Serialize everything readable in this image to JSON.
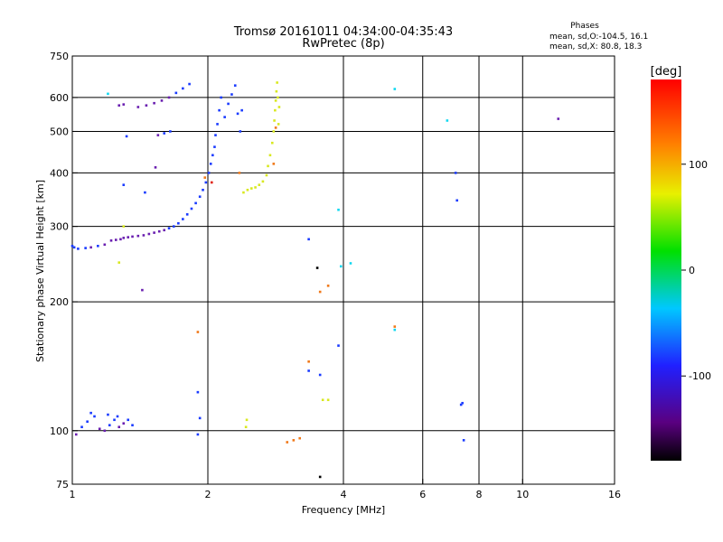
{
  "title": "Tromsø 20161011 04:34:00-04:35:43",
  "subtitle": "RwPretec (8p)",
  "phases_box": {
    "heading": "Phases",
    "line_o": "mean, sd,O:-104.5, 16.1",
    "line_x": "mean, sd,X:  80.8, 18.3"
  },
  "colorbar": {
    "label": "[deg]",
    "ticks": [
      "100",
      "0",
      "-100"
    ],
    "tick_values": [
      100,
      0,
      -100
    ],
    "range": [
      -180,
      180
    ]
  },
  "colors": {
    "purple": "#6a1fb0",
    "blue": "#1a3bff",
    "cyan": "#10d8f0",
    "yellow": "#d8e820",
    "orange": "#f07818",
    "red": "#e02010",
    "black": "#000000"
  },
  "chart_data": {
    "type": "scatter",
    "xlabel": "Frequency [MHz]",
    "ylabel": "Stationary phase Virtual Height [km]",
    "xscale": "log",
    "yscale": "log",
    "xlim": [
      1,
      16
    ],
    "ylim": [
      75,
      750
    ],
    "grid": true,
    "x_ticks": [
      {
        "v": 1,
        "label": "1"
      },
      {
        "v": 2,
        "label": "2"
      },
      {
        "v": 4,
        "label": "4"
      },
      {
        "v": 6,
        "label": "6"
      },
      {
        "v": 8,
        "label": "8"
      },
      {
        "v": 10,
        "label": "10"
      },
      {
        "v": 16,
        "label": "16"
      }
    ],
    "x_gridlines": [
      2,
      4,
      6,
      8,
      10
    ],
    "y_ticks": [
      {
        "v": 75,
        "label": "75"
      },
      {
        "v": 100,
        "label": "100"
      },
      {
        "v": 200,
        "label": "200"
      },
      {
        "v": 300,
        "label": "300"
      },
      {
        "v": 400,
        "label": "400"
      },
      {
        "v": 500,
        "label": "500"
      },
      {
        "v": 600,
        "label": "600"
      },
      {
        "v": 750,
        "label": "750"
      }
    ],
    "y_gridlines": [
      100,
      200,
      300,
      400,
      500,
      600
    ],
    "points": [
      {
        "x": 1.0,
        "y": 270,
        "c": "blue"
      },
      {
        "x": 1.01,
        "y": 268,
        "c": "blue"
      },
      {
        "x": 1.03,
        "y": 266,
        "c": "blue"
      },
      {
        "x": 1.07,
        "y": 267,
        "c": "blue"
      },
      {
        "x": 1.1,
        "y": 268,
        "c": "purple"
      },
      {
        "x": 1.14,
        "y": 270,
        "c": "blue"
      },
      {
        "x": 1.18,
        "y": 272,
        "c": "purple"
      },
      {
        "x": 1.22,
        "y": 278,
        "c": "purple"
      },
      {
        "x": 1.25,
        "y": 279,
        "c": "purple"
      },
      {
        "x": 1.28,
        "y": 280,
        "c": "purple"
      },
      {
        "x": 1.3,
        "y": 282,
        "c": "purple"
      },
      {
        "x": 1.33,
        "y": 283,
        "c": "purple"
      },
      {
        "x": 1.36,
        "y": 284,
        "c": "purple"
      },
      {
        "x": 1.4,
        "y": 285,
        "c": "purple"
      },
      {
        "x": 1.44,
        "y": 286,
        "c": "purple"
      },
      {
        "x": 1.48,
        "y": 288,
        "c": "purple"
      },
      {
        "x": 1.52,
        "y": 290,
        "c": "purple"
      },
      {
        "x": 1.56,
        "y": 292,
        "c": "purple"
      },
      {
        "x": 1.6,
        "y": 294,
        "c": "purple"
      },
      {
        "x": 1.64,
        "y": 297,
        "c": "blue"
      },
      {
        "x": 1.68,
        "y": 300,
        "c": "blue"
      },
      {
        "x": 1.72,
        "y": 305,
        "c": "blue"
      },
      {
        "x": 1.76,
        "y": 312,
        "c": "blue"
      },
      {
        "x": 1.8,
        "y": 320,
        "c": "blue"
      },
      {
        "x": 1.84,
        "y": 330,
        "c": "blue"
      },
      {
        "x": 1.88,
        "y": 340,
        "c": "blue"
      },
      {
        "x": 1.92,
        "y": 352,
        "c": "blue"
      },
      {
        "x": 1.95,
        "y": 365,
        "c": "blue"
      },
      {
        "x": 1.98,
        "y": 380,
        "c": "blue"
      },
      {
        "x": 2.01,
        "y": 400,
        "c": "blue"
      },
      {
        "x": 2.03,
        "y": 420,
        "c": "blue"
      },
      {
        "x": 2.05,
        "y": 440,
        "c": "blue"
      },
      {
        "x": 2.07,
        "y": 460,
        "c": "blue"
      },
      {
        "x": 2.08,
        "y": 490,
        "c": "blue"
      },
      {
        "x": 2.1,
        "y": 520,
        "c": "blue"
      },
      {
        "x": 2.12,
        "y": 560,
        "c": "blue"
      },
      {
        "x": 2.14,
        "y": 600,
        "c": "blue"
      },
      {
        "x": 2.18,
        "y": 540,
        "c": "blue"
      },
      {
        "x": 2.22,
        "y": 580,
        "c": "blue"
      },
      {
        "x": 2.26,
        "y": 610,
        "c": "blue"
      },
      {
        "x": 2.3,
        "y": 640,
        "c": "blue"
      },
      {
        "x": 2.33,
        "y": 550,
        "c": "blue"
      },
      {
        "x": 2.36,
        "y": 500,
        "c": "blue"
      },
      {
        "x": 2.38,
        "y": 560,
        "c": "blue"
      },
      {
        "x": 2.04,
        "y": 380,
        "c": "red"
      },
      {
        "x": 1.97,
        "y": 390,
        "c": "orange"
      },
      {
        "x": 1.4,
        "y": 570,
        "c": "purple"
      },
      {
        "x": 1.46,
        "y": 575,
        "c": "purple"
      },
      {
        "x": 1.52,
        "y": 582,
        "c": "purple"
      },
      {
        "x": 1.58,
        "y": 590,
        "c": "purple"
      },
      {
        "x": 1.64,
        "y": 600,
        "c": "purple"
      },
      {
        "x": 1.7,
        "y": 615,
        "c": "blue"
      },
      {
        "x": 1.76,
        "y": 630,
        "c": "blue"
      },
      {
        "x": 1.82,
        "y": 645,
        "c": "blue"
      },
      {
        "x": 1.27,
        "y": 575,
        "c": "purple"
      },
      {
        "x": 1.3,
        "y": 578,
        "c": "purple"
      },
      {
        "x": 1.55,
        "y": 490,
        "c": "purple"
      },
      {
        "x": 1.6,
        "y": 495,
        "c": "blue"
      },
      {
        "x": 1.65,
        "y": 500,
        "c": "blue"
      },
      {
        "x": 1.2,
        "y": 612,
        "c": "cyan"
      },
      {
        "x": 1.32,
        "y": 487,
        "c": "blue"
      },
      {
        "x": 1.53,
        "y": 412,
        "c": "purple"
      },
      {
        "x": 1.3,
        "y": 375,
        "c": "blue"
      },
      {
        "x": 1.45,
        "y": 360,
        "c": "blue"
      },
      {
        "x": 1.3,
        "y": 300,
        "c": "yellow"
      },
      {
        "x": 1.27,
        "y": 247,
        "c": "yellow"
      },
      {
        "x": 1.43,
        "y": 213,
        "c": "purple"
      },
      {
        "x": 2.4,
        "y": 360,
        "c": "yellow"
      },
      {
        "x": 2.45,
        "y": 365,
        "c": "yellow"
      },
      {
        "x": 2.5,
        "y": 368,
        "c": "yellow"
      },
      {
        "x": 2.55,
        "y": 370,
        "c": "yellow"
      },
      {
        "x": 2.6,
        "y": 375,
        "c": "yellow"
      },
      {
        "x": 2.65,
        "y": 382,
        "c": "yellow"
      },
      {
        "x": 2.7,
        "y": 395,
        "c": "yellow"
      },
      {
        "x": 2.72,
        "y": 415,
        "c": "yellow"
      },
      {
        "x": 2.75,
        "y": 440,
        "c": "yellow"
      },
      {
        "x": 2.78,
        "y": 470,
        "c": "yellow"
      },
      {
        "x": 2.8,
        "y": 500,
        "c": "yellow"
      },
      {
        "x": 2.81,
        "y": 530,
        "c": "yellow"
      },
      {
        "x": 2.82,
        "y": 560,
        "c": "yellow"
      },
      {
        "x": 2.83,
        "y": 590,
        "c": "yellow"
      },
      {
        "x": 2.84,
        "y": 620,
        "c": "yellow"
      },
      {
        "x": 2.85,
        "y": 650,
        "c": "yellow"
      },
      {
        "x": 2.86,
        "y": 600,
        "c": "yellow"
      },
      {
        "x": 2.88,
        "y": 570,
        "c": "yellow"
      },
      {
        "x": 2.87,
        "y": 520,
        "c": "yellow"
      },
      {
        "x": 2.83,
        "y": 510,
        "c": "orange"
      },
      {
        "x": 2.8,
        "y": 420,
        "c": "orange"
      },
      {
        "x": 2.35,
        "y": 400,
        "c": "orange"
      },
      {
        "x": 1.02,
        "y": 98,
        "c": "purple"
      },
      {
        "x": 1.05,
        "y": 102,
        "c": "blue"
      },
      {
        "x": 1.08,
        "y": 105,
        "c": "blue"
      },
      {
        "x": 1.12,
        "y": 108,
        "c": "blue"
      },
      {
        "x": 1.15,
        "y": 101,
        "c": "purple"
      },
      {
        "x": 1.18,
        "y": 100,
        "c": "purple"
      },
      {
        "x": 1.21,
        "y": 103,
        "c": "blue"
      },
      {
        "x": 1.24,
        "y": 106,
        "c": "blue"
      },
      {
        "x": 1.27,
        "y": 102,
        "c": "purple"
      },
      {
        "x": 1.3,
        "y": 104,
        "c": "purple"
      },
      {
        "x": 1.33,
        "y": 106,
        "c": "blue"
      },
      {
        "x": 1.36,
        "y": 103,
        "c": "blue"
      },
      {
        "x": 1.1,
        "y": 110,
        "c": "blue"
      },
      {
        "x": 1.2,
        "y": 109,
        "c": "blue"
      },
      {
        "x": 1.26,
        "y": 108,
        "c": "blue"
      },
      {
        "x": 1.9,
        "y": 170,
        "c": "orange"
      },
      {
        "x": 1.9,
        "y": 123,
        "c": "blue"
      },
      {
        "x": 1.92,
        "y": 107,
        "c": "blue"
      },
      {
        "x": 1.9,
        "y": 98,
        "c": "blue"
      },
      {
        "x": 2.43,
        "y": 102,
        "c": "yellow"
      },
      {
        "x": 2.44,
        "y": 106,
        "c": "yellow"
      },
      {
        "x": 3.1,
        "y": 95,
        "c": "orange"
      },
      {
        "x": 3.2,
        "y": 96,
        "c": "orange"
      },
      {
        "x": 3.0,
        "y": 94,
        "c": "orange"
      },
      {
        "x": 3.35,
        "y": 145,
        "c": "orange"
      },
      {
        "x": 3.35,
        "y": 138,
        "c": "blue"
      },
      {
        "x": 3.55,
        "y": 135,
        "c": "blue"
      },
      {
        "x": 3.5,
        "y": 240,
        "c": "black"
      },
      {
        "x": 3.55,
        "y": 211,
        "c": "orange"
      },
      {
        "x": 3.7,
        "y": 218,
        "c": "orange"
      },
      {
        "x": 3.6,
        "y": 118,
        "c": "yellow"
      },
      {
        "x": 3.7,
        "y": 118,
        "c": "yellow"
      },
      {
        "x": 3.9,
        "y": 158,
        "c": "blue"
      },
      {
        "x": 3.35,
        "y": 280,
        "c": "blue"
      },
      {
        "x": 3.9,
        "y": 328,
        "c": "cyan"
      },
      {
        "x": 3.95,
        "y": 242,
        "c": "cyan"
      },
      {
        "x": 4.15,
        "y": 246,
        "c": "cyan"
      },
      {
        "x": 3.55,
        "y": 78,
        "c": "black"
      },
      {
        "x": 5.2,
        "y": 175,
        "c": "orange"
      },
      {
        "x": 5.2,
        "y": 172,
        "c": "cyan"
      },
      {
        "x": 5.2,
        "y": 628,
        "c": "cyan"
      },
      {
        "x": 6.8,
        "y": 530,
        "c": "cyan"
      },
      {
        "x": 7.1,
        "y": 400,
        "c": "blue"
      },
      {
        "x": 7.15,
        "y": 345,
        "c": "blue"
      },
      {
        "x": 7.3,
        "y": 115,
        "c": "blue"
      },
      {
        "x": 7.35,
        "y": 116,
        "c": "blue"
      },
      {
        "x": 7.4,
        "y": 95,
        "c": "blue"
      },
      {
        "x": 12.0,
        "y": 535,
        "c": "purple"
      }
    ]
  }
}
